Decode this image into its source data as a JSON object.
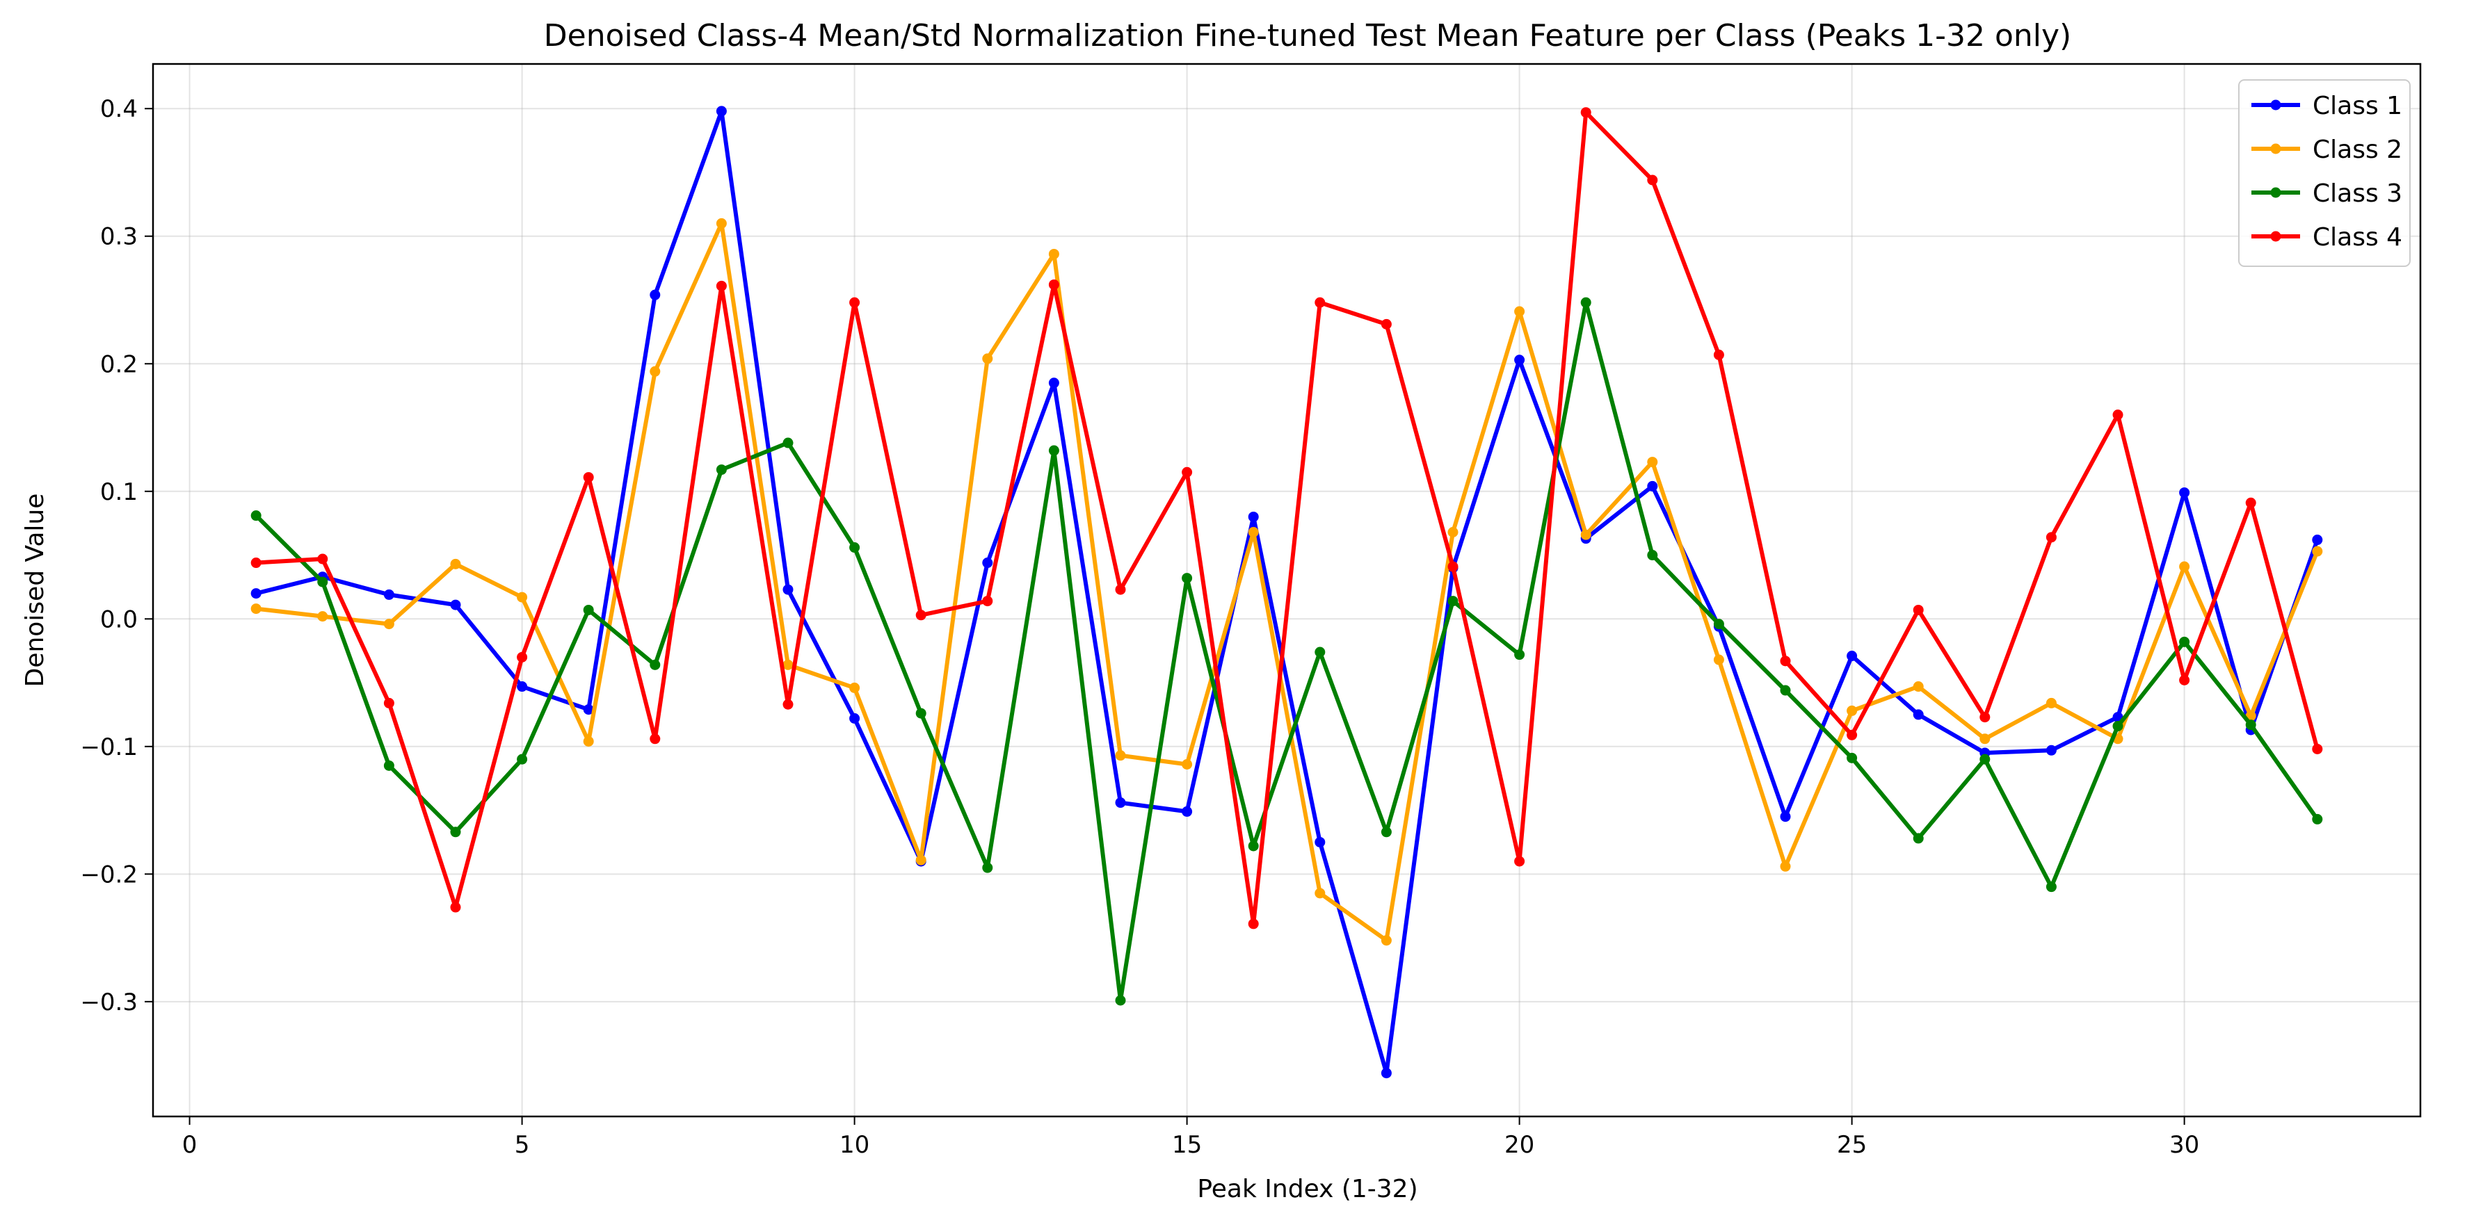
{
  "chart_data": {
    "type": "line",
    "title": "Denoised Class-4 Mean/Std Normalization Fine-tuned Test Mean Feature per Class (Peaks 1-32 only)",
    "xlabel": "Peak Index (1-32)",
    "ylabel": "Denoised Value",
    "xlim": [
      -0.55,
      33.55
    ],
    "ylim": [
      -0.39,
      0.435
    ],
    "xticks": [
      0,
      5,
      10,
      15,
      20,
      25,
      30
    ],
    "yticks": [
      -0.3,
      -0.2,
      -0.1,
      0.0,
      0.1,
      0.2,
      0.3,
      0.4
    ],
    "grid": true,
    "legend_position": "top-right",
    "x": [
      1,
      2,
      3,
      4,
      5,
      6,
      7,
      8,
      9,
      10,
      11,
      12,
      13,
      14,
      15,
      16,
      17,
      18,
      19,
      20,
      21,
      22,
      23,
      24,
      25,
      26,
      27,
      28,
      29,
      30,
      31,
      32
    ],
    "series": [
      {
        "name": "Class 1",
        "color": "#0000ff",
        "values": [
          0.02,
          0.033,
          0.019,
          0.011,
          -0.053,
          -0.071,
          0.254,
          0.398,
          0.023,
          -0.078,
          -0.19,
          0.044,
          0.185,
          -0.144,
          -0.151,
          0.08,
          -0.175,
          -0.356,
          0.04,
          0.203,
          0.063,
          0.104,
          -0.006,
          -0.155,
          -0.029,
          -0.075,
          -0.105,
          -0.103,
          -0.077,
          0.099,
          -0.087,
          0.062
        ]
      },
      {
        "name": "Class 2",
        "color": "#ffa500",
        "values": [
          0.008,
          0.002,
          -0.004,
          0.043,
          0.017,
          -0.096,
          0.194,
          0.31,
          -0.036,
          -0.054,
          -0.189,
          0.204,
          0.286,
          -0.107,
          -0.114,
          0.068,
          -0.215,
          -0.252,
          0.068,
          0.241,
          0.066,
          0.123,
          -0.032,
          -0.194,
          -0.072,
          -0.053,
          -0.094,
          -0.066,
          -0.094,
          0.041,
          -0.076,
          0.053
        ]
      },
      {
        "name": "Class 3",
        "color": "#008000",
        "values": [
          0.081,
          0.029,
          -0.115,
          -0.167,
          -0.11,
          0.007,
          -0.036,
          0.117,
          0.138,
          0.056,
          -0.074,
          -0.195,
          0.132,
          -0.299,
          0.032,
          -0.178,
          -0.026,
          -0.167,
          0.014,
          -0.028,
          0.248,
          0.05,
          -0.004,
          -0.056,
          -0.109,
          -0.172,
          -0.11,
          -0.21,
          -0.084,
          -0.018,
          -0.083,
          -0.157
        ]
      },
      {
        "name": "Class 4",
        "color": "#ff0000",
        "values": [
          0.044,
          0.047,
          -0.066,
          -0.226,
          -0.03,
          0.111,
          -0.094,
          0.261,
          -0.067,
          0.248,
          0.003,
          0.014,
          0.262,
          0.023,
          0.115,
          -0.239,
          0.248,
          0.231,
          0.041,
          -0.19,
          0.397,
          0.344,
          0.207,
          -0.033,
          -0.091,
          0.007,
          -0.077,
          0.064,
          0.16,
          -0.048,
          0.091,
          -0.102
        ]
      }
    ]
  }
}
